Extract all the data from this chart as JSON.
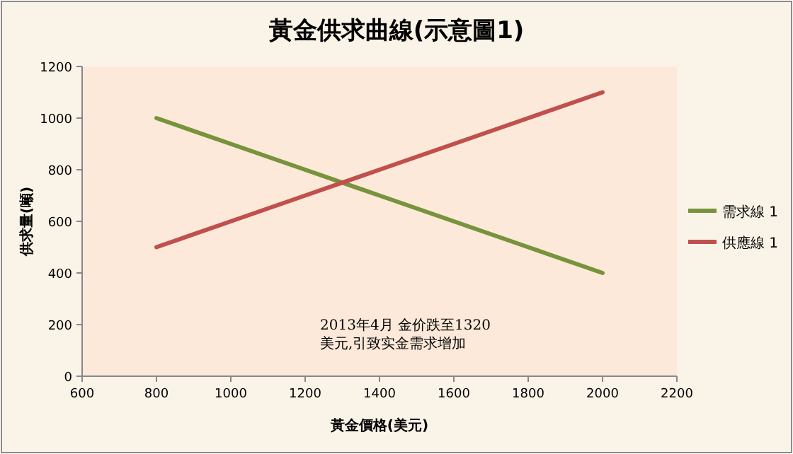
{
  "chart_data": {
    "type": "line",
    "title": "黃金供求曲線(示意圖1)",
    "xlabel": "黃金價格(美元)",
    "ylabel": "供求量(噸)",
    "x": [
      800,
      1000,
      1200,
      1400,
      1600,
      1800,
      2000
    ],
    "series": [
      {
        "name": "需求線 1",
        "color": "#77933c",
        "values": [
          1000,
          900,
          800,
          700,
          600,
          500,
          400
        ]
      },
      {
        "name": "供應線 1",
        "color": "#c0504d",
        "values": [
          500,
          600,
          700,
          800,
          900,
          1000,
          1100
        ]
      }
    ],
    "xlim": [
      600,
      2200
    ],
    "xticks": [
      600,
      800,
      1000,
      1200,
      1400,
      1600,
      1800,
      2000,
      2200
    ],
    "ylim": [
      0,
      1200
    ],
    "yticks": [
      0,
      200,
      400,
      600,
      800,
      1000,
      1200
    ],
    "annotations": [
      "2013年4月 金价跌至1320美元,引致实金需求增加"
    ],
    "legend": "right",
    "marker": "none",
    "line_style": "solid",
    "grid": false
  }
}
